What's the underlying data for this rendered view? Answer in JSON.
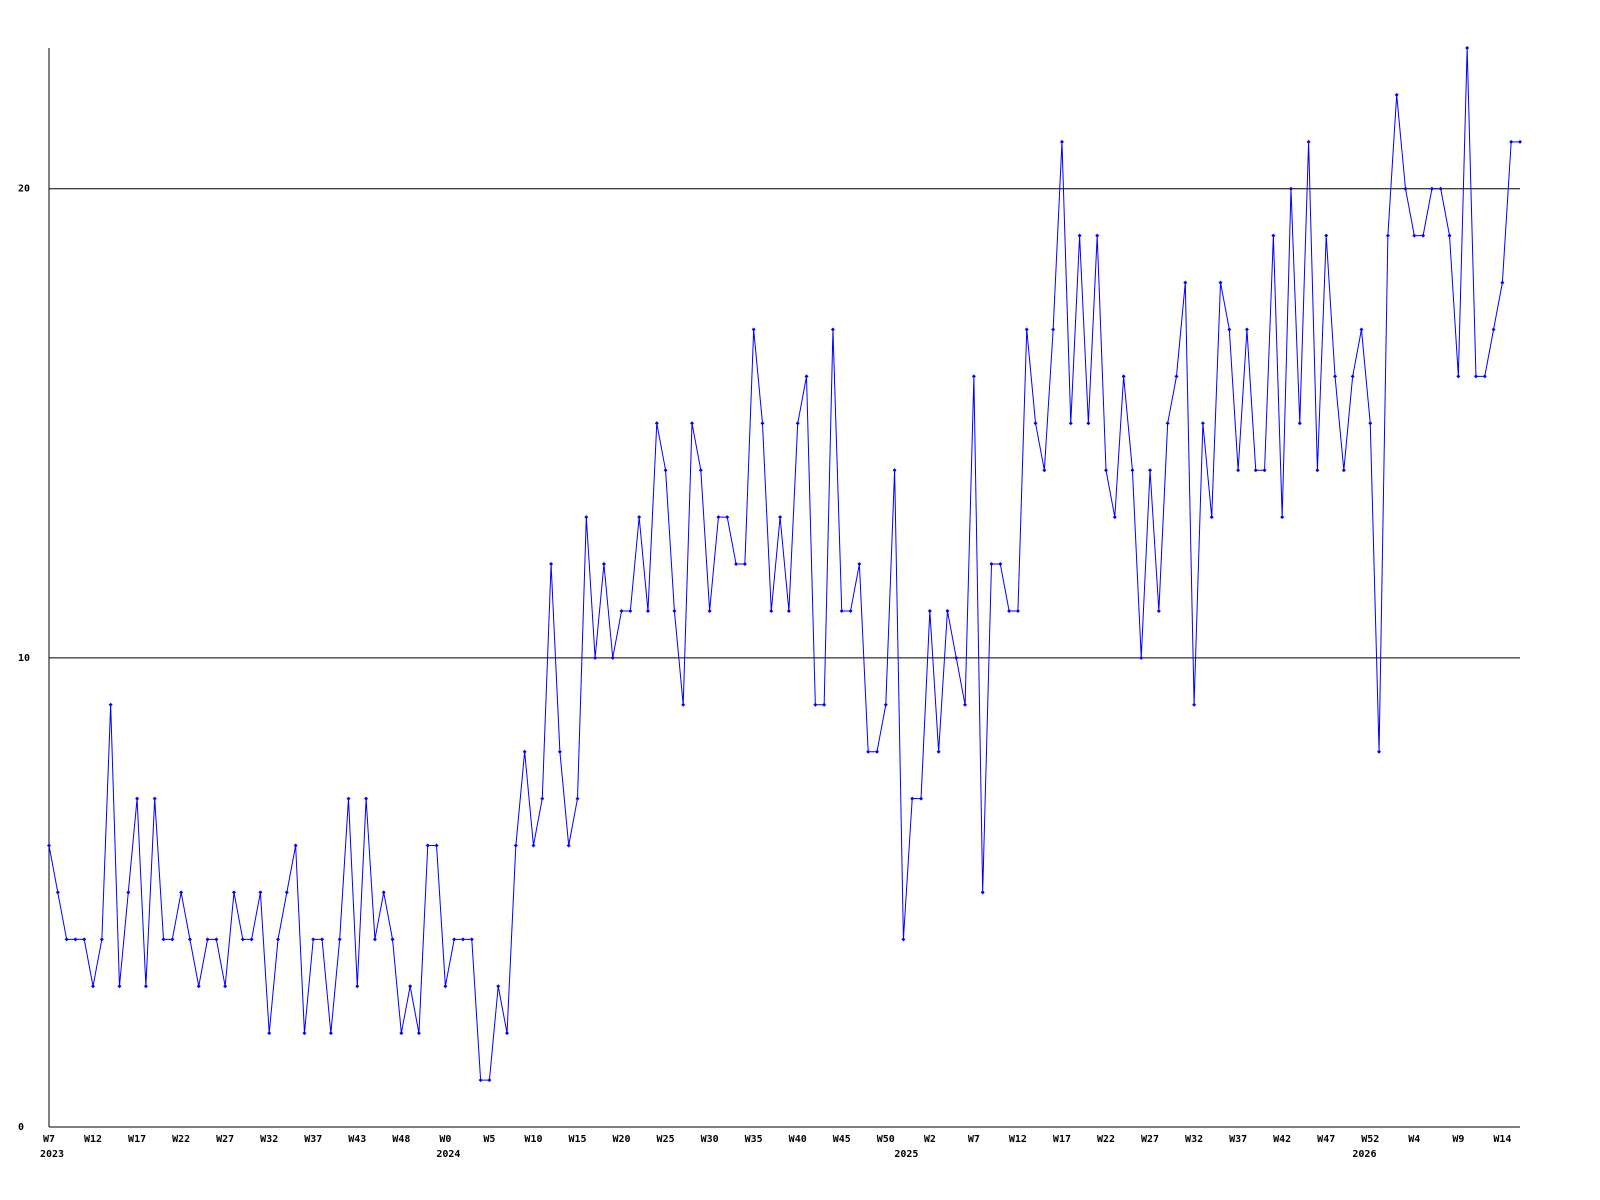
{
  "chart_data": {
    "type": "line",
    "categories": [
      "W7",
      null,
      null,
      null,
      null,
      "W12",
      null,
      null,
      null,
      null,
      "W17",
      null,
      null,
      null,
      null,
      "W22",
      null,
      null,
      null,
      null,
      "W27",
      null,
      null,
      null,
      null,
      "W32",
      null,
      null,
      null,
      null,
      "W37",
      null,
      null,
      null,
      null,
      "W43",
      null,
      null,
      null,
      null,
      "W48",
      null,
      null,
      null,
      null,
      "W0",
      null,
      null,
      null,
      null,
      "W5",
      null,
      null,
      null,
      null,
      "W10",
      null,
      null,
      null,
      null,
      "W15",
      null,
      null,
      null,
      null,
      "W20",
      null,
      null,
      null,
      null,
      "W25",
      null,
      null,
      null,
      null,
      "W30",
      null,
      null,
      null,
      null,
      "W35",
      null,
      null,
      null,
      null,
      "W40",
      null,
      null,
      null,
      null,
      "W45",
      null,
      null,
      null,
      null,
      "W50",
      null,
      null,
      null,
      null,
      "W2",
      null,
      null,
      null,
      null,
      "W7",
      null,
      null,
      null,
      null,
      "W12",
      null,
      null,
      null,
      null,
      "W17",
      null,
      null,
      null,
      null,
      "W22",
      null,
      null,
      null,
      null,
      "W27",
      null,
      null,
      null,
      null,
      "W32",
      null,
      null,
      null,
      null,
      "W37",
      null,
      null,
      null,
      null,
      "W42",
      null,
      null,
      null,
      null,
      "W47",
      null,
      null,
      null,
      null,
      "W52",
      null,
      null,
      null,
      null,
      "W4",
      null,
      null,
      null,
      null,
      "W9",
      null,
      null,
      null,
      null,
      "W14",
      null,
      null
    ],
    "year_labels": [
      "2023",
      null,
      null,
      null,
      null,
      null,
      null,
      null,
      null,
      null,
      null,
      null,
      null,
      null,
      null,
      null,
      null,
      null,
      null,
      null,
      null,
      null,
      null,
      null,
      null,
      null,
      null,
      null,
      null,
      null,
      null,
      null,
      null,
      null,
      null,
      null,
      null,
      null,
      null,
      null,
      null,
      null,
      null,
      null,
      null,
      "2024",
      null,
      null,
      null,
      null,
      null,
      null,
      null,
      null,
      null,
      null,
      null,
      null,
      null,
      null,
      null,
      null,
      null,
      null,
      null,
      null,
      null,
      null,
      null,
      null,
      null,
      null,
      null,
      null,
      null,
      null,
      null,
      null,
      null,
      null,
      null,
      null,
      null,
      null,
      null,
      null,
      null,
      null,
      null,
      null,
      null,
      null,
      null,
      null,
      null,
      null,
      null,
      "2025",
      null,
      null,
      null,
      null,
      null,
      null,
      null,
      null,
      null,
      null,
      null,
      null,
      null,
      null,
      null,
      null,
      null,
      null,
      null,
      null,
      null,
      null,
      null,
      null,
      null,
      null,
      null,
      null,
      null,
      null,
      null,
      null,
      null,
      null,
      null,
      null,
      null,
      null,
      null,
      null,
      null,
      null,
      null,
      null,
      null,
      null,
      null,
      null,
      null,
      null,
      null,
      "2026",
      null,
      null,
      null,
      null,
      null,
      null,
      null,
      null,
      null,
      null,
      null,
      null,
      null,
      null,
      null,
      null
    ],
    "series": [
      {
        "color": "#0000ff",
        "values": [
          6,
          5,
          4,
          4,
          4,
          3,
          4,
          9,
          3,
          5,
          7,
          3,
          7,
          4,
          4,
          5,
          4,
          3,
          4,
          4,
          3,
          5,
          4,
          4,
          5,
          2,
          4,
          5,
          6,
          2,
          4,
          4,
          2,
          4,
          7,
          3,
          7,
          4,
          5,
          4,
          2,
          3,
          2,
          6,
          6,
          3,
          4,
          4,
          4,
          1,
          1,
          3,
          2,
          6,
          8,
          6,
          7,
          12,
          8,
          6,
          7,
          13,
          10,
          12,
          10,
          11,
          11,
          13,
          11,
          15,
          14,
          11,
          9,
          15,
          14,
          11,
          13,
          13,
          12,
          12,
          17,
          15,
          11,
          13,
          11,
          15,
          16,
          9,
          9,
          17,
          11,
          11,
          12,
          8,
          8,
          9,
          14,
          4,
          7,
          7,
          11,
          8,
          11,
          10,
          9,
          16,
          5,
          12,
          12,
          11,
          11,
          17,
          15,
          14,
          17,
          21,
          15,
          19,
          15,
          19,
          14,
          13,
          16,
          14,
          10,
          14,
          11,
          15,
          16,
          18,
          9,
          15,
          13,
          18,
          17,
          14,
          17,
          14,
          14,
          19,
          13,
          20,
          15,
          21,
          14,
          19,
          16,
          14,
          16,
          17,
          15,
          8,
          19,
          22,
          20,
          19,
          19,
          20,
          20,
          19,
          16,
          23,
          16,
          16,
          17,
          18,
          21,
          21
        ]
      }
    ],
    "ylim": [
      0,
      23
    ],
    "yticks": [
      0,
      10,
      20
    ],
    "grid": true
  }
}
